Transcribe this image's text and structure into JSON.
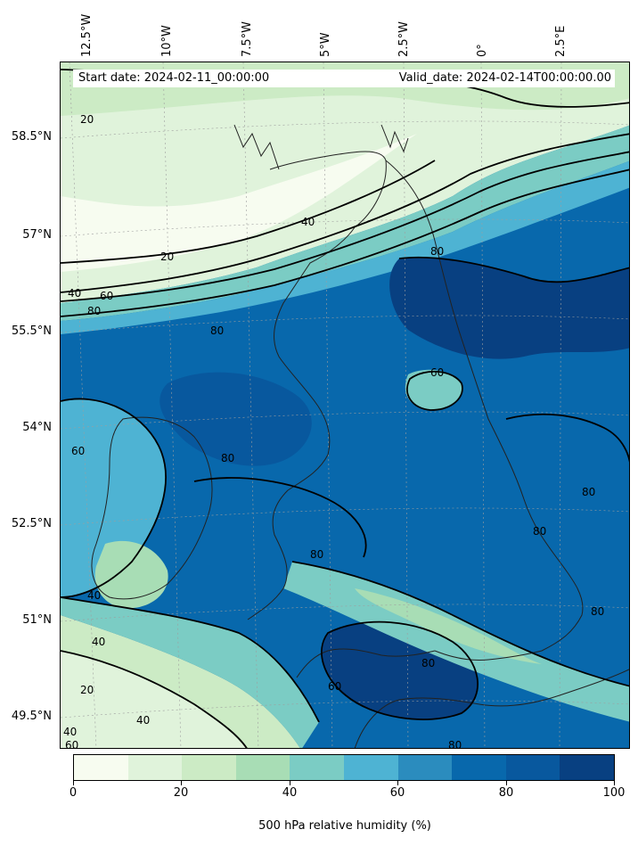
{
  "header": {
    "start_date": "Start date: 2024-02-11_00:00:00",
    "valid_date": "Valid_date: 2024-02-14T00:00:00.00"
  },
  "longitude_labels": [
    "12.5°W",
    "10°W",
    "7.5°W",
    "5°W",
    "2.5°W",
    "0°",
    "2.5°E"
  ],
  "latitude_labels": [
    "58.5°N",
    "57°N",
    "55.5°N",
    "54°N",
    "52.5°N",
    "51°N",
    "49.5°N"
  ],
  "colorbar": {
    "title": "500 hPa relative humidity (%)",
    "ticks": [
      "0",
      "20",
      "40",
      "60",
      "80",
      "100"
    ],
    "colors": [
      "#f7fcf0",
      "#e0f3db",
      "#ccebc5",
      "#a8ddb5",
      "#7bccc4",
      "#4eb3d3",
      "#2b8cbe",
      "#0868ac",
      "#08589e",
      "#084081"
    ]
  },
  "contour_labels": [
    "20",
    "40",
    "60",
    "80"
  ]
}
